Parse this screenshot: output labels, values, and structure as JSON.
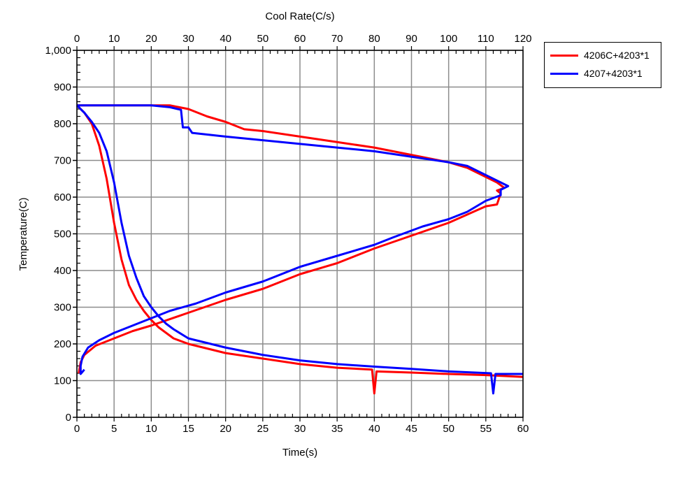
{
  "chart_data": {
    "type": "line",
    "title": "",
    "xlabel": "Time(s)",
    "x2label": "Cool Rate(C/s)",
    "ylabel": "Temperature(C)",
    "xlim": [
      0,
      60
    ],
    "x2lim": [
      0,
      120
    ],
    "ylim": [
      0,
      1000
    ],
    "grid": true,
    "legend_position": "outside-top-right",
    "xticks": [
      "0",
      "5",
      "10",
      "15",
      "20",
      "25",
      "30",
      "35",
      "40",
      "45",
      "50",
      "55",
      "60"
    ],
    "x2ticks": [
      "0",
      "10",
      "20",
      "30",
      "40",
      "50",
      "60",
      "70",
      "80",
      "90",
      "100",
      "110",
      "120"
    ],
    "yticks": [
      "0",
      "100",
      "200",
      "300",
      "400",
      "500",
      "600",
      "700",
      "800",
      "900",
      "1,000"
    ],
    "series": [
      {
        "name": "4206C+4203*1",
        "color": "#ff0000",
        "temp_vs_time": [
          [
            0,
            850
          ],
          [
            1,
            830
          ],
          [
            2,
            800
          ],
          [
            3,
            740
          ],
          [
            4,
            650
          ],
          [
            5,
            530
          ],
          [
            6,
            430
          ],
          [
            7,
            360
          ],
          [
            8,
            320
          ],
          [
            9,
            290
          ],
          [
            10,
            265
          ],
          [
            11,
            245
          ],
          [
            12,
            230
          ],
          [
            13,
            215
          ],
          [
            15,
            200
          ],
          [
            17,
            190
          ],
          [
            20,
            175
          ],
          [
            25,
            160
          ],
          [
            30,
            145
          ],
          [
            35,
            135
          ],
          [
            39.7,
            130
          ],
          [
            40,
            65
          ],
          [
            40.3,
            125
          ],
          [
            45,
            122
          ],
          [
            50,
            118
          ],
          [
            55,
            115
          ],
          [
            60,
            110
          ]
        ],
        "temp_vs_cool_rate": [
          [
            0,
            850
          ],
          [
            25,
            850
          ],
          [
            30,
            840
          ],
          [
            35,
            820
          ],
          [
            40,
            805
          ],
          [
            45,
            785
          ],
          [
            50,
            780
          ],
          [
            60,
            765
          ],
          [
            70,
            750
          ],
          [
            80,
            735
          ],
          [
            90,
            715
          ],
          [
            100,
            695
          ],
          [
            105,
            680
          ],
          [
            110,
            655
          ],
          [
            113,
            640
          ],
          [
            115,
            625
          ],
          [
            113,
            618
          ],
          [
            114,
            610
          ],
          [
            113,
            580
          ],
          [
            110,
            575
          ],
          [
            100,
            530
          ],
          [
            90,
            495
          ],
          [
            80,
            460
          ],
          [
            70,
            420
          ],
          [
            60,
            390
          ],
          [
            50,
            350
          ],
          [
            40,
            320
          ],
          [
            30,
            285
          ],
          [
            20,
            250
          ],
          [
            15,
            235
          ],
          [
            10,
            215
          ],
          [
            5,
            195
          ],
          [
            2,
            170
          ],
          [
            1,
            150
          ],
          [
            0.5,
            120
          ]
        ]
      },
      {
        "name": "4207+4203*1",
        "color": "#0000ff",
        "temp_vs_time": [
          [
            0,
            850
          ],
          [
            1,
            830
          ],
          [
            2,
            805
          ],
          [
            3,
            775
          ],
          [
            4,
            725
          ],
          [
            5,
            640
          ],
          [
            6,
            530
          ],
          [
            7,
            440
          ],
          [
            8,
            380
          ],
          [
            9,
            330
          ],
          [
            10,
            300
          ],
          [
            11,
            275
          ],
          [
            12,
            255
          ],
          [
            13,
            240
          ],
          [
            15,
            215
          ],
          [
            20,
            190
          ],
          [
            25,
            170
          ],
          [
            30,
            155
          ],
          [
            35,
            145
          ],
          [
            40,
            138
          ],
          [
            45,
            132
          ],
          [
            50,
            125
          ],
          [
            55.7,
            120
          ],
          [
            56,
            65
          ],
          [
            56.3,
            118
          ],
          [
            60,
            118
          ]
        ],
        "temp_vs_cool_rate": [
          [
            0,
            850
          ],
          [
            20,
            850
          ],
          [
            25,
            845
          ],
          [
            28,
            838
          ],
          [
            28.5,
            790
          ],
          [
            30,
            790
          ],
          [
            31,
            775
          ],
          [
            40,
            765
          ],
          [
            50,
            755
          ],
          [
            60,
            745
          ],
          [
            70,
            735
          ],
          [
            80,
            725
          ],
          [
            90,
            710
          ],
          [
            100,
            695
          ],
          [
            105,
            685
          ],
          [
            108,
            670
          ],
          [
            112,
            650
          ],
          [
            114,
            640
          ],
          [
            116,
            630
          ],
          [
            114,
            620
          ],
          [
            114,
            605
          ],
          [
            110,
            590
          ],
          [
            105,
            560
          ],
          [
            100,
            540
          ],
          [
            93,
            520
          ],
          [
            85,
            490
          ],
          [
            80,
            470
          ],
          [
            70,
            440
          ],
          [
            60,
            410
          ],
          [
            50,
            370
          ],
          [
            40,
            340
          ],
          [
            32,
            310
          ],
          [
            25,
            290
          ],
          [
            20,
            270
          ],
          [
            15,
            250
          ],
          [
            10,
            230
          ],
          [
            6,
            210
          ],
          [
            3,
            190
          ],
          [
            1.5,
            165
          ],
          [
            1,
            140
          ],
          [
            1,
            118
          ],
          [
            2,
            130
          ]
        ]
      }
    ]
  }
}
